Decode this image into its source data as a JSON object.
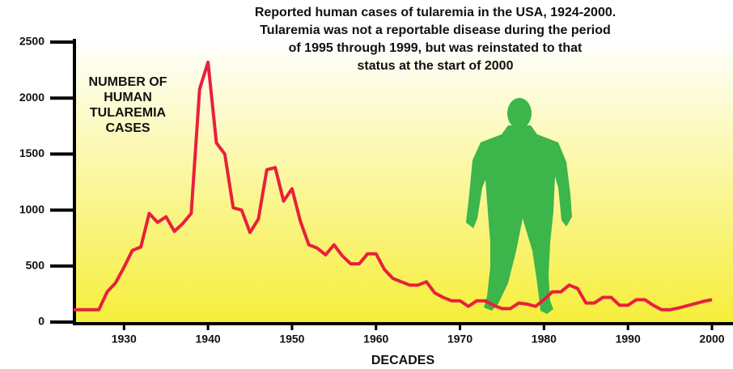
{
  "chart_data": {
    "type": "line",
    "title": [
      "Reported human cases of tularemia in the USA, 1924-2000.",
      "Tularemia was not a reportable disease during the period",
      "of 1995 through 1999,  but was reinstated to that",
      "status at the start of 2000"
    ],
    "ylabel": [
      "NUMBER OF",
      "HUMAN",
      "TULAREMIA",
      "CASES"
    ],
    "xlabel": "DECADES",
    "x": [
      1924,
      1925,
      1926,
      1927,
      1928,
      1929,
      1930,
      1931,
      1932,
      1933,
      1934,
      1935,
      1936,
      1937,
      1938,
      1939,
      1940,
      1941,
      1942,
      1943,
      1944,
      1945,
      1946,
      1947,
      1948,
      1949,
      1950,
      1951,
      1952,
      1953,
      1954,
      1955,
      1956,
      1957,
      1958,
      1959,
      1960,
      1961,
      1962,
      1963,
      1964,
      1965,
      1966,
      1967,
      1968,
      1969,
      1970,
      1971,
      1972,
      1973,
      1974,
      1975,
      1976,
      1977,
      1978,
      1979,
      1980,
      1981,
      1982,
      1983,
      1984,
      1985,
      1986,
      1987,
      1988,
      1989,
      1990,
      1991,
      1992,
      1993,
      1994,
      1995,
      1996,
      1997,
      1998,
      1999,
      2000
    ],
    "series": [
      {
        "color": "#e8203c",
        "values": [
          110,
          110,
          110,
          110,
          270,
          350,
          490,
          640,
          670,
          970,
          890,
          940,
          810,
          880,
          970,
          2080,
          2320,
          1600,
          1500,
          1020,
          1000,
          800,
          920,
          1360,
          1380,
          1080,
          1190,
          900,
          690,
          660,
          600,
          690,
          590,
          520,
          520,
          610,
          610,
          470,
          390,
          360,
          330,
          330,
          360,
          260,
          220,
          190,
          190,
          140,
          190,
          190,
          150,
          120,
          120,
          170,
          160,
          140,
          200,
          270,
          270,
          330,
          300,
          170,
          170,
          220,
          220,
          150,
          150,
          200,
          200,
          150,
          110,
          110,
          125,
          145,
          165,
          185,
          200
        ]
      }
    ],
    "xlim": [
      1924,
      2000
    ],
    "xticks": [
      1930,
      1940,
      1950,
      1960,
      1970,
      1980,
      1990,
      2000
    ],
    "ylim": [
      0,
      2500
    ],
    "yticks": [
      0,
      500,
      1000,
      1500,
      2000,
      2500
    ]
  }
}
